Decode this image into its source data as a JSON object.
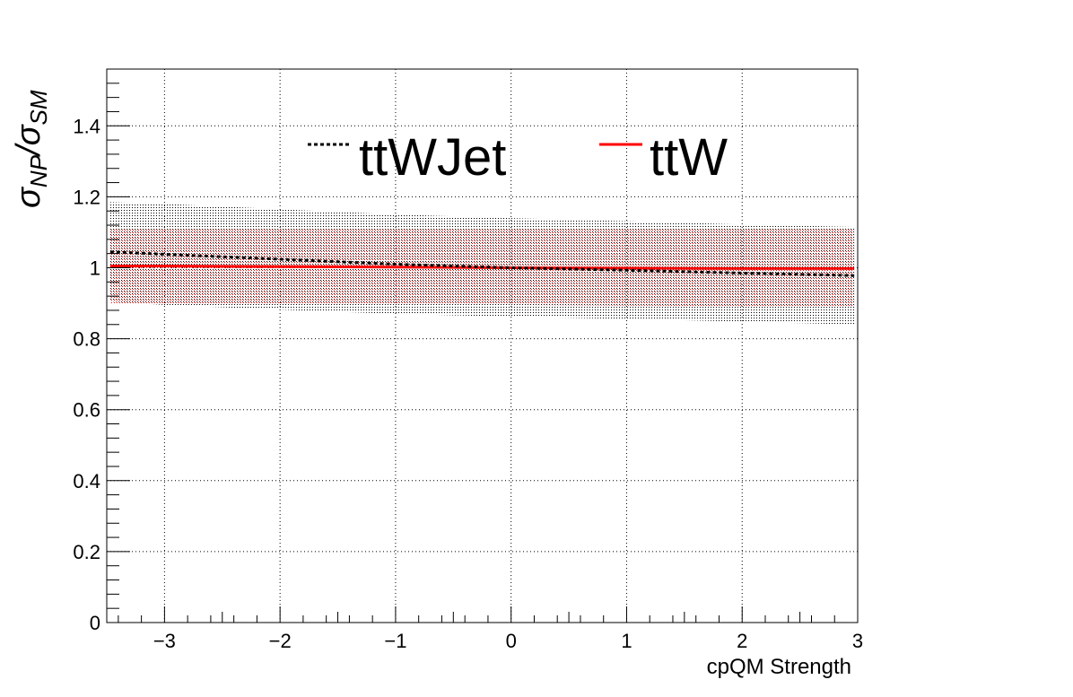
{
  "chart_data": {
    "type": "line",
    "title": "",
    "xlabel": "cpQM Strength",
    "ylabel_main": "σ",
    "ylabel_num_sub": "NP",
    "ylabel_slash": "/σ",
    "ylabel_den_sub": "SM",
    "xlim": [
      -3.5,
      3.0
    ],
    "ylim": [
      0,
      1.56
    ],
    "x_ticks": [
      -3,
      -2,
      -1,
      0,
      1,
      2,
      3
    ],
    "x_tick_labels": [
      "−3",
      "−2",
      "−1",
      "0",
      "1",
      "2",
      "3"
    ],
    "y_ticks": [
      0,
      0.2,
      0.4,
      0.6,
      0.8,
      1.0,
      1.2,
      1.4
    ],
    "y_tick_labels": [
      "0",
      "0.2",
      "0.4",
      "0.6",
      "0.8",
      "1",
      "1.2",
      "1.4"
    ],
    "grid": true,
    "legend_position": "top-center",
    "series": [
      {
        "name": "ttWJet",
        "style": "dotted",
        "color": "#000000",
        "band_color": "#000000",
        "x": [
          -3.47,
          -3.0,
          -2.0,
          -1.0,
          0.0,
          1.0,
          2.0,
          2.97
        ],
        "values": [
          1.045,
          1.038,
          1.024,
          1.01,
          1.0,
          0.993,
          0.985,
          0.978
        ],
        "band_low": [
          0.905,
          0.895,
          0.882,
          0.87,
          0.862,
          0.856,
          0.848,
          0.84
        ],
        "band_high": [
          1.185,
          1.18,
          1.165,
          1.15,
          1.14,
          1.131,
          1.122,
          1.115
        ]
      },
      {
        "name": "ttW",
        "style": "solid",
        "color": "#ff0000",
        "band_color": "#ff0000",
        "x": [
          -3.47,
          -3.0,
          -2.0,
          -1.0,
          0.0,
          1.0,
          2.0,
          2.97
        ],
        "values": [
          1.005,
          1.005,
          1.003,
          1.002,
          1.0,
          0.999,
          0.998,
          0.998
        ],
        "band_low": [
          0.9,
          0.9,
          0.898,
          0.897,
          0.895,
          0.893,
          0.892,
          0.89
        ],
        "band_high": [
          1.11,
          1.11,
          1.11,
          1.11,
          1.11,
          1.11,
          1.11,
          1.11
        ]
      }
    ]
  }
}
